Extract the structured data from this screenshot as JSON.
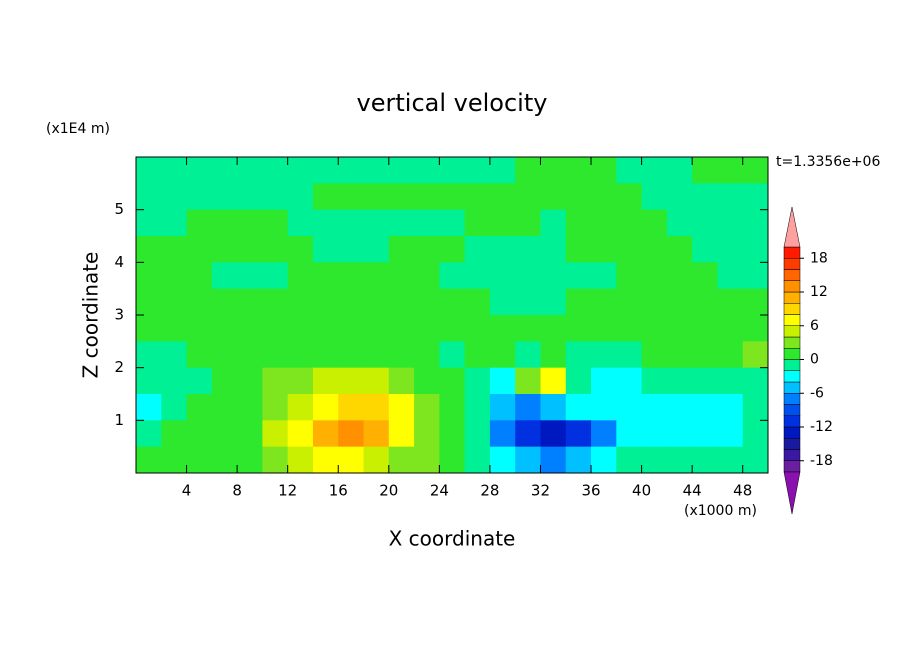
{
  "chart_data": {
    "type": "contour",
    "title": "vertical velocity",
    "xlabel": "X coordinate",
    "ylabel": "Z coordinate",
    "x_unit": "(x1000 m)",
    "y_unit": "(x1E4 m)",
    "annotation": "t=1.3356e+06",
    "xlim": [
      0,
      50
    ],
    "ylim": [
      0,
      6
    ],
    "xticks": [
      4,
      8,
      12,
      16,
      20,
      24,
      28,
      32,
      36,
      40,
      44,
      48
    ],
    "yticks": [
      1,
      2,
      3,
      4,
      5
    ],
    "x": [
      1,
      3,
      5,
      7,
      9,
      11,
      13,
      15,
      17,
      19,
      21,
      23,
      25,
      27,
      29,
      31,
      33,
      35,
      37,
      39,
      41,
      43,
      45,
      47,
      49
    ],
    "y": [
      5.75,
      5.25,
      4.75,
      4.25,
      3.75,
      3.25,
      2.75,
      2.25,
      1.75,
      1.25,
      0.75,
      0.25
    ],
    "z": [
      [
        -1,
        -1,
        -1,
        -1,
        -1,
        -1,
        -1,
        -1,
        -1,
        -1,
        -1,
        -1,
        -1,
        -1,
        -1,
        1,
        1,
        1,
        1,
        -1,
        -1,
        -1,
        1,
        1,
        1
      ],
      [
        -1,
        -1,
        -1,
        -1,
        -1,
        -1,
        -1,
        1,
        1,
        1,
        1,
        1,
        1,
        1,
        1,
        1,
        1,
        1,
        1,
        1,
        -1,
        -1,
        -1,
        -1,
        -1
      ],
      [
        -1,
        -1,
        1,
        1,
        1,
        1,
        -1,
        -1,
        -1,
        -1,
        -1,
        -1,
        -1,
        1,
        1,
        1,
        -1,
        1,
        1,
        1,
        1,
        -1,
        -1,
        -1,
        -1
      ],
      [
        1,
        1,
        1,
        1,
        1,
        1,
        1,
        -1,
        -1,
        -1,
        1,
        1,
        1,
        -1,
        -1,
        -1,
        -1,
        1,
        1,
        1,
        1,
        1,
        -1,
        -1,
        -1
      ],
      [
        1,
        1,
        1,
        -1,
        -1,
        -1,
        1,
        1,
        1,
        1,
        1,
        1,
        -1,
        -1,
        -1,
        -1,
        -1,
        -1,
        -1,
        1,
        1,
        1,
        1,
        -1,
        -1
      ],
      [
        1,
        1,
        1,
        1,
        1,
        1,
        1,
        1,
        1,
        1,
        1,
        1,
        1,
        1,
        -1,
        -1,
        -1,
        1,
        1,
        1,
        1,
        1,
        1,
        1,
        1
      ],
      [
        1,
        1,
        1,
        1,
        1,
        1,
        1,
        1,
        1,
        1,
        1,
        1,
        1,
        1,
        1,
        1,
        1,
        1,
        1,
        1,
        1,
        1,
        1,
        1,
        1
      ],
      [
        -1,
        -1,
        1,
        1,
        1,
        1,
        1,
        1,
        1,
        1,
        1,
        1,
        -1,
        1,
        1,
        -1,
        1,
        -1,
        -1,
        -1,
        1,
        1,
        1,
        1,
        3
      ],
      [
        -1,
        -1,
        -1,
        1,
        1,
        3,
        3,
        5,
        5,
        5,
        3,
        1,
        1,
        -1,
        -3,
        3,
        7,
        -1,
        -3,
        -3,
        -1,
        -1,
        -1,
        -1,
        -1
      ],
      [
        -3,
        -1,
        1,
        1,
        1,
        3,
        5,
        7,
        9,
        9,
        7,
        3,
        1,
        -1,
        -5,
        -7,
        -5,
        -3,
        -3,
        -3,
        -3,
        -3,
        -3,
        -3,
        -1
      ],
      [
        -1,
        1,
        1,
        1,
        1,
        5,
        7,
        11,
        13,
        11,
        7,
        3,
        1,
        -1,
        -7,
        -11,
        -13,
        -11,
        -7,
        -3,
        -3,
        -3,
        -3,
        -3,
        -1
      ],
      [
        1,
        1,
        1,
        1,
        1,
        3,
        5,
        7,
        7,
        5,
        3,
        3,
        1,
        -1,
        -3,
        -5,
        -7,
        -5,
        -3,
        -1,
        -1,
        -1,
        -1,
        -1,
        -1
      ]
    ],
    "levels": [
      -20,
      -18,
      -16,
      -14,
      -12,
      -10,
      -8,
      -6,
      -4,
      -2,
      0,
      2,
      4,
      6,
      8,
      10,
      12,
      14,
      16,
      18,
      20
    ],
    "colors": [
      "#6a1fa0",
      "#3a18a0",
      "#1a1aa0",
      "#0018c0",
      "#0030e0",
      "#0050f0",
      "#0080ff",
      "#00c0ff",
      "#00ffff",
      "#00f096",
      "#2ee82e",
      "#7ee61e",
      "#c8f000",
      "#ffff00",
      "#ffd700",
      "#ffb000",
      "#ff9000",
      "#ff6600",
      "#ff3c00",
      "#ff1a00"
    ],
    "extend_colors": {
      "over": "#ffa0a0",
      "under": "#8a10b0"
    },
    "cticks": [
      18,
      12,
      6,
      0,
      -6,
      -12,
      -18
    ]
  }
}
